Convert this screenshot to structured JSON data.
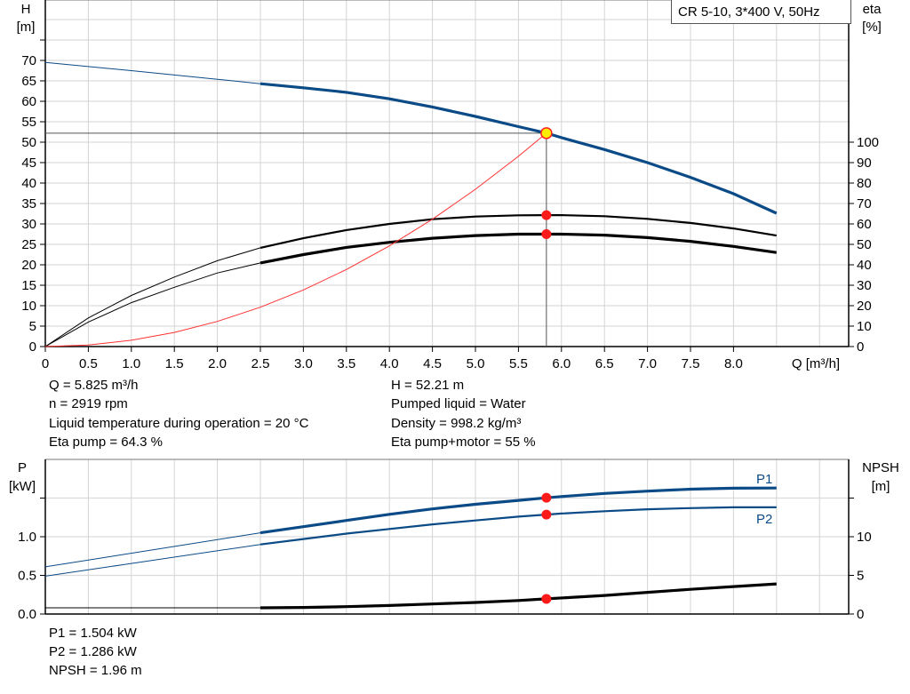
{
  "chart_data": [
    {
      "type": "line",
      "title": "CR 5-10, 3*400 V, 50Hz",
      "xlabel": "Q [m³/h]",
      "ylabel_left": [
        "H",
        "[m]"
      ],
      "ylabel_right": [
        "eta",
        "[%]"
      ],
      "xlim": [
        0,
        9.5
      ],
      "ylim_left": [
        0,
        85
      ],
      "ylim_right": [
        0,
        100
      ],
      "x_ticks": [
        "0",
        "0.5",
        "1.0",
        "1.5",
        "2.0",
        "2.5",
        "3.0",
        "3.5",
        "4.0",
        "4.5",
        "5.0",
        "5.5",
        "6.0",
        "6.5",
        "7.0",
        "7.5",
        "8.0"
      ],
      "y_ticks_left": [
        "0",
        "5",
        "10",
        "15",
        "20",
        "25",
        "30",
        "35",
        "40",
        "45",
        "50",
        "55",
        "60",
        "65",
        "70"
      ],
      "y_ticks_right": [
        "0",
        "10",
        "20",
        "30",
        "40",
        "50",
        "60",
        "70",
        "80",
        "90",
        "100"
      ],
      "grid": true,
      "series": [
        {
          "id": "H",
          "axis": "left",
          "color": "#0a4a86",
          "thin_until": 2.5,
          "points": [
            [
              0,
              69.5
            ],
            [
              1,
              67.5
            ],
            [
              2,
              65.4
            ],
            [
              2.5,
              64.3
            ],
            [
              3,
              63.3
            ],
            [
              3.5,
              62.2
            ],
            [
              4,
              60.6
            ],
            [
              4.5,
              58.6
            ],
            [
              5,
              56.3
            ],
            [
              5.5,
              53.8
            ],
            [
              5.825,
              52.21
            ],
            [
              6,
              51.1
            ],
            [
              6.5,
              48.2
            ],
            [
              7,
              45.0
            ],
            [
              7.5,
              41.4
            ],
            [
              8,
              37.4
            ],
            [
              8.5,
              32.6
            ]
          ]
        },
        {
          "id": "eta_pump",
          "axis": "right",
          "color": "#000000",
          "thin_until": 2.5,
          "points": [
            [
              0,
              0
            ],
            [
              0.5,
              14
            ],
            [
              1,
              25
            ],
            [
              1.5,
              34
            ],
            [
              2,
              42
            ],
            [
              2.5,
              48.3
            ],
            [
              3,
              53
            ],
            [
              3.5,
              57
            ],
            [
              4,
              60
            ],
            [
              4.5,
              62.3
            ],
            [
              5,
              63.6
            ],
            [
              5.5,
              64.2
            ],
            [
              5.825,
              64.3
            ],
            [
              6,
              64.3
            ],
            [
              6.5,
              63.8
            ],
            [
              7,
              62.5
            ],
            [
              7.5,
              60.5
            ],
            [
              8,
              57.8
            ],
            [
              8.5,
              54.3
            ]
          ]
        },
        {
          "id": "eta_pump_motor",
          "axis": "right",
          "color": "#000000",
          "thin_until": 2.5,
          "points": [
            [
              0,
              0
            ],
            [
              0.5,
              12
            ],
            [
              1,
              21.5
            ],
            [
              1.5,
              29
            ],
            [
              2,
              36
            ],
            [
              2.5,
              40.9
            ],
            [
              3,
              45
            ],
            [
              3.5,
              48.5
            ],
            [
              4,
              51
            ],
            [
              4.5,
              53
            ],
            [
              5,
              54.3
            ],
            [
              5.5,
              55
            ],
            [
              5.825,
              55
            ],
            [
              6,
              55
            ],
            [
              6.5,
              54.5
            ],
            [
              7,
              53.3
            ],
            [
              7.5,
              51.5
            ],
            [
              8,
              49
            ],
            [
              8.5,
              46
            ]
          ]
        },
        {
          "id": "system_curve",
          "axis": "left",
          "color": "#ff3030",
          "thin_until": 99,
          "points": [
            [
              0,
              0
            ],
            [
              0.5,
              0.38
            ],
            [
              1,
              1.54
            ],
            [
              1.5,
              3.46
            ],
            [
              2,
              6.15
            ],
            [
              2.5,
              9.62
            ],
            [
              3,
              13.85
            ],
            [
              3.5,
              18.85
            ],
            [
              4,
              24.62
            ],
            [
              4.5,
              31.16
            ],
            [
              5,
              38.47
            ],
            [
              5.5,
              46.55
            ],
            [
              5.825,
              52.21
            ]
          ]
        }
      ],
      "operating_point": {
        "q": 5.825,
        "h": 52.21,
        "eta_pump": 64.3,
        "eta_pump_motor": 55,
        "marker_color": "#ffee00",
        "marker_edge": "#ff2020"
      }
    },
    {
      "type": "line",
      "xlim": [
        0,
        9.5
      ],
      "ylabel_left": [
        "P",
        "[kW]"
      ],
      "ylabel_right": [
        "NPSH",
        "[m]"
      ],
      "ylim_left": [
        0,
        2.0
      ],
      "ylim_right": [
        0,
        20
      ],
      "y_ticks_left": [
        "0.0",
        "0.5",
        "1.0"
      ],
      "y_ticks_right": [
        "0",
        "5",
        "10"
      ],
      "grid": true,
      "series": [
        {
          "id": "P1",
          "name": "P1",
          "axis": "left",
          "color": "#0a4a86",
          "thin_until": 2.5,
          "points": [
            [
              0,
              0.61
            ],
            [
              2.5,
              1.05
            ],
            [
              3,
              1.13
            ],
            [
              3.5,
              1.21
            ],
            [
              4,
              1.29
            ],
            [
              4.5,
              1.36
            ],
            [
              5,
              1.42
            ],
            [
              5.5,
              1.47
            ],
            [
              5.825,
              1.504
            ],
            [
              6,
              1.52
            ],
            [
              6.5,
              1.56
            ],
            [
              7,
              1.59
            ],
            [
              7.5,
              1.615
            ],
            [
              8,
              1.628
            ],
            [
              8.5,
              1.63
            ]
          ]
        },
        {
          "id": "P2",
          "name": "P2",
          "axis": "left",
          "color": "#0a4a86",
          "thin_until": 2.5,
          "points": [
            [
              0,
              0.49
            ],
            [
              2.5,
              0.9
            ],
            [
              3,
              0.97
            ],
            [
              3.5,
              1.04
            ],
            [
              4,
              1.1
            ],
            [
              4.5,
              1.16
            ],
            [
              5,
              1.21
            ],
            [
              5.5,
              1.26
            ],
            [
              5.825,
              1.286
            ],
            [
              6,
              1.3
            ],
            [
              6.5,
              1.33
            ],
            [
              7,
              1.355
            ],
            [
              7.5,
              1.37
            ],
            [
              8,
              1.38
            ],
            [
              8.5,
              1.38
            ]
          ]
        },
        {
          "id": "NPSH",
          "axis": "right",
          "color": "#000000",
          "thin_until": 2.5,
          "points": [
            [
              0,
              0.8
            ],
            [
              2.5,
              0.8
            ],
            [
              3,
              0.85
            ],
            [
              3.5,
              0.95
            ],
            [
              4,
              1.1
            ],
            [
              4.5,
              1.3
            ],
            [
              5,
              1.5
            ],
            [
              5.5,
              1.75
            ],
            [
              5.825,
              1.96
            ],
            [
              6.5,
              2.4
            ],
            [
              7,
              2.8
            ],
            [
              7.5,
              3.2
            ],
            [
              8,
              3.55
            ],
            [
              8.5,
              3.9
            ]
          ]
        }
      ],
      "operating_point": {
        "p1": 1.504,
        "p2": 1.286,
        "npsh": 1.96
      }
    }
  ],
  "info_top": {
    "left": [
      "Q = 5.825 m³/h",
      "n = 2919 rpm",
      "Liquid temperature during operation = 20 °C",
      "Eta pump = 64.3 %"
    ],
    "right": [
      "H = 52.21 m",
      "Pumped liquid = Water",
      "Density = 998.2 kg/m³",
      "Eta pump+motor = 55 %"
    ]
  },
  "info_bottom": [
    "P1 = 1.504 kW",
    "P2 = 1.286 kW",
    "NPSH = 1.96 m"
  ]
}
